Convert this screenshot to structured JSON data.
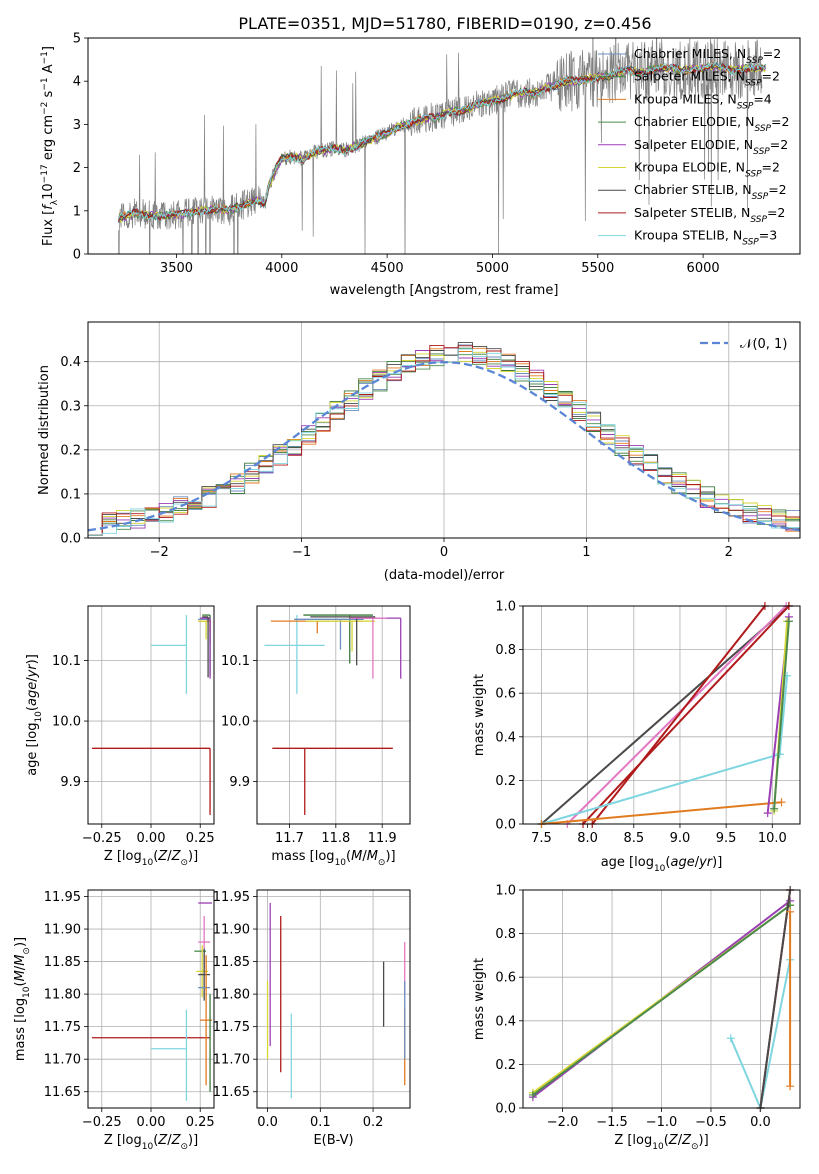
{
  "colors": {
    "Chabrier MILES": "#6c8ebf",
    "Salpeter MILES": "#3b7a3b",
    "Kroupa MILES": "#e07b20",
    "Chabrier ELODIE": "#4c8a4c",
    "Salpeter ELODIE": "#9b3fb5",
    "Kroupa ELODIE": "#d6d636",
    "Chabrier STELIB": "#4a4a4a",
    "Salpeter STELIB": "#b11a1a",
    "Kroupa STELIB": "#7fd6e0",
    "gaussian": "#5b86d6",
    "pink": "#e377c2",
    "data": "#808080"
  },
  "legend_top": [
    {
      "name": "Chabrier MILES",
      "n": "2"
    },
    {
      "name": "Salpeter MILES",
      "n": "2"
    },
    {
      "name": "Kroupa MILES",
      "n": "4"
    },
    {
      "name": "Chabrier ELODIE",
      "n": "2"
    },
    {
      "name": "Salpeter ELODIE",
      "n": "2"
    },
    {
      "name": "Kroupa ELODIE",
      "n": "2"
    },
    {
      "name": "Chabrier STELIB",
      "n": "2"
    },
    {
      "name": "Salpeter STELIB",
      "n": "2"
    },
    {
      "name": "Kroupa STELIB",
      "n": "3"
    }
  ],
  "legend_label_prefix": "N",
  "legend_label_sub": "SSP",
  "chart_data": [
    {
      "id": "spectrum",
      "type": "line",
      "title": "PLATE=0351, MJD=51780, FIBERID=0190, z=0.456",
      "xlabel": "wavelength [Angstrom, rest frame]",
      "ylabel": "Flux [f_λ 10^-17 erg cm^-2 s^-1 A^-1]",
      "xlim": [
        3080,
        6460
      ],
      "ylim": [
        0,
        5
      ],
      "xticks": [
        "3500",
        "4000",
        "4500",
        "5000",
        "5500",
        "6000"
      ],
      "yticks": [
        "0",
        "1",
        "2",
        "3",
        "4",
        "5"
      ],
      "continuum": [
        [
          3225,
          0.83
        ],
        [
          3270,
          0.9
        ],
        [
          3300,
          0.95
        ],
        [
          3350,
          0.92
        ],
        [
          3400,
          0.9
        ],
        [
          3450,
          0.88
        ],
        [
          3500,
          0.9
        ],
        [
          3550,
          0.95
        ],
        [
          3600,
          1.0
        ],
        [
          3650,
          1.02
        ],
        [
          3700,
          1.05
        ],
        [
          3750,
          1.0
        ],
        [
          3800,
          1.1
        ],
        [
          3850,
          1.2
        ],
        [
          3880,
          1.25
        ],
        [
          3920,
          1.15
        ],
        [
          3940,
          1.6
        ],
        [
          3980,
          2.05
        ],
        [
          4000,
          2.2
        ],
        [
          4050,
          2.25
        ],
        [
          4100,
          2.2
        ],
        [
          4150,
          2.35
        ],
        [
          4200,
          2.4
        ],
        [
          4250,
          2.45
        ],
        [
          4300,
          2.4
        ],
        [
          4350,
          2.5
        ],
        [
          4400,
          2.6
        ],
        [
          4450,
          2.7
        ],
        [
          4500,
          2.8
        ],
        [
          4550,
          2.95
        ],
        [
          4600,
          3.0
        ],
        [
          4650,
          3.1
        ],
        [
          4700,
          3.15
        ],
        [
          4750,
          3.2
        ],
        [
          4800,
          3.3
        ],
        [
          4860,
          3.3
        ],
        [
          4900,
          3.4
        ],
        [
          4950,
          3.5
        ],
        [
          5000,
          3.55
        ],
        [
          5050,
          3.6
        ],
        [
          5100,
          3.7
        ],
        [
          5150,
          3.75
        ],
        [
          5200,
          3.7
        ],
        [
          5250,
          3.85
        ],
        [
          5300,
          3.9
        ],
        [
          5350,
          4.0
        ],
        [
          5400,
          4.0
        ],
        [
          5450,
          4.05
        ],
        [
          5500,
          4.1
        ],
        [
          5550,
          4.1
        ],
        [
          5600,
          4.2
        ],
        [
          5650,
          4.25
        ],
        [
          5700,
          4.2
        ],
        [
          5750,
          4.25
        ],
        [
          5800,
          4.3
        ],
        [
          5850,
          4.3
        ],
        [
          5900,
          4.25
        ],
        [
          5950,
          4.3
        ],
        [
          6000,
          4.3
        ],
        [
          6050,
          4.35
        ],
        [
          6100,
          4.3
        ],
        [
          6150,
          4.25
        ],
        [
          6200,
          4.3
        ]
      ],
      "data_range": [
        3225,
        6280
      ]
    },
    {
      "id": "residuals",
      "type": "step",
      "xlabel": "(data-model)/error",
      "ylabel": "Normed distribution",
      "xlim": [
        -2.5,
        2.5
      ],
      "ylim": [
        0,
        0.49
      ],
      "xticks": [
        "−2",
        "−1",
        "0",
        "1",
        "2"
      ],
      "yticks": [
        "0.0",
        "0.1",
        "0.2",
        "0.3",
        "0.4"
      ],
      "gaussian_label": "𝒩(0, 1)",
      "bin_width": 0.1
    },
    {
      "id": "age-vs-Z",
      "type": "errorbar",
      "xlabel": "Z [log10(Z/Z⊙)]",
      "ylabel": "age [log10(age/yr)]",
      "xlim": [
        -0.32,
        0.32
      ],
      "ylim": [
        9.83,
        10.19
      ],
      "xticks": [
        "−0.25",
        "0.00",
        "0.25"
      ],
      "yticks": [
        "9.9",
        "10.0",
        "10.1"
      ],
      "points": [
        {
          "s": "Salpeter STELIB",
          "x": 0.3,
          "y": 9.955,
          "xe": [
            0.6,
            0.0
          ],
          "ye": [
            0.11,
            0.0
          ]
        },
        {
          "s": "Kroupa STELIB",
          "x": 0.18,
          "y": 10.125,
          "xe": [
            0.18,
            0.0
          ],
          "ye": [
            0.08,
            0.05
          ]
        },
        {
          "s": "Chabrier MILES",
          "x": 0.3,
          "y": 10.168,
          "xe": [
            0.06,
            0.0
          ],
          "ye": [
            0.04,
            0.0
          ]
        },
        {
          "s": "Salpeter MILES",
          "x": 0.3,
          "y": 10.175,
          "xe": [
            0.04,
            0.0
          ],
          "ye": [
            0.1,
            0.0
          ]
        },
        {
          "s": "Kroupa MILES",
          "x": 0.3,
          "y": 10.165,
          "xe": [
            0.06,
            0.0
          ],
          "ye": [
            0.02,
            0.0
          ]
        },
        {
          "s": "Salpeter ELODIE",
          "x": 0.3,
          "y": 10.17,
          "xe": [
            0.05,
            0.0
          ],
          "ye": [
            0.1,
            0.0
          ]
        },
        {
          "s": "Kroupa ELODIE",
          "x": 0.28,
          "y": 10.165,
          "xe": [
            0.04,
            0.0
          ],
          "ye": [
            0.03,
            0.0
          ]
        },
        {
          "s": "Chabrier STELIB",
          "x": 0.29,
          "y": 10.172,
          "xe": [
            0.03,
            0.0
          ],
          "ye": [
            0.1,
            0.0
          ]
        }
      ]
    },
    {
      "id": "age-vs-mass",
      "type": "errorbar",
      "xlabel": "mass [log10(M/M⊙)]",
      "ylabel": "",
      "xlim": [
        11.63,
        11.96
      ],
      "ylim": [
        9.83,
        10.19
      ],
      "xticks": [
        "11.7",
        "11.8",
        "11.9"
      ],
      "yticks": [
        "9.9",
        "10.0",
        "10.1"
      ],
      "points": [
        {
          "s": "Salpeter STELIB",
          "x": 11.733,
          "y": 9.955,
          "xe": [
            0.07,
            0.19
          ],
          "ye": [
            0.11,
            0.0
          ]
        },
        {
          "s": "Kroupa STELIB",
          "x": 11.716,
          "y": 10.125,
          "xe": [
            0.07,
            0.06
          ],
          "ye": [
            0.08,
            0.05
          ]
        },
        {
          "s": "Kroupa MILES",
          "x": 11.76,
          "y": 10.165,
          "xe": [
            0.1,
            0.1
          ],
          "ye": [
            0.02,
            0.0
          ]
        },
        {
          "s": "Salpeter ELODIE",
          "x": 11.94,
          "y": 10.17,
          "xe": [
            0.1,
            0.0
          ],
          "ye": [
            0.1,
            0.0
          ]
        },
        {
          "s": "Salpeter MILES",
          "x": 11.83,
          "y": 10.175,
          "xe": [
            0.1,
            0.05
          ],
          "ye": [
            0.08,
            0.0
          ]
        },
        {
          "s": "Chabrier MILES",
          "x": 11.81,
          "y": 10.168,
          "xe": [
            0.1,
            0.05
          ],
          "ye": [
            0.05,
            0.0
          ]
        },
        {
          "s": "Kroupa ELODIE",
          "x": 11.835,
          "y": 10.165,
          "xe": [
            0.1,
            0.05
          ],
          "ye": [
            0.05,
            0.0
          ]
        },
        {
          "s": "Chabrier STELIB",
          "x": 11.845,
          "y": 10.172,
          "xe": [
            0.1,
            0.04
          ],
          "ye": [
            0.08,
            0.0
          ]
        },
        {
          "s": "pink",
          "x": 11.88,
          "y": 10.17,
          "xe": [
            0.05,
            0.03
          ],
          "ye": [
            0.1,
            0.0
          ]
        }
      ]
    },
    {
      "id": "massweight-vs-age",
      "type": "line",
      "xlabel": "age [log10(age/yr)]",
      "ylabel": "mass weight",
      "xlim": [
        7.3,
        10.3
      ],
      "ylim": [
        0,
        1
      ],
      "xticks": [
        "7.5",
        "8.0",
        "8.5",
        "9.0",
        "9.5",
        "10.0"
      ],
      "yticks": [
        "0.0",
        "0.2",
        "0.4",
        "0.6",
        "0.8",
        "1.0"
      ],
      "series": [
        {
          "s": "Chabrier STELIB",
          "x": [
            7.5,
            10.18
          ],
          "y": [
            0.0,
            1.0
          ]
        },
        {
          "s": "pink",
          "x": [
            7.78,
            10.15
          ],
          "y": [
            0.0,
            1.0
          ]
        },
        {
          "s": "Salpeter STELIB",
          "x": [
            8.05,
            9.92
          ],
          "y": [
            0.0,
            1.0
          ]
        },
        {
          "s": "Salpeter STELIB",
          "x": [
            7.95,
            10.18
          ],
          "y": [
            0.0,
            1.0
          ]
        },
        {
          "s": "Kroupa STELIB",
          "x": [
            7.5,
            10.08
          ],
          "y": [
            0.0,
            0.32
          ]
        },
        {
          "s": "Kroupa MILES",
          "x": [
            7.5,
            10.1
          ],
          "y": [
            0.0,
            0.1
          ]
        },
        {
          "s": "Salpeter ELODIE",
          "x": [
            9.95,
            10.18
          ],
          "y": [
            0.05,
            0.95
          ]
        },
        {
          "s": "Kroupa ELODIE",
          "x": [
            10.02,
            10.16
          ],
          "y": [
            0.06,
            0.93
          ]
        },
        {
          "s": "Kroupa STELIB",
          "x": [
            10.08,
            10.16
          ],
          "y": [
            0.32,
            0.68
          ]
        },
        {
          "s": "Chabrier ELODIE",
          "x": [
            10.02,
            10.18
          ],
          "y": [
            0.07,
            0.93
          ]
        }
      ]
    },
    {
      "id": "mass-vs-Z",
      "type": "errorbar",
      "xlabel": "Z [log10(Z/Z⊙)]",
      "ylabel": "mass [log10(M/M⊙)]",
      "xlim": [
        -0.32,
        0.32
      ],
      "ylim": [
        11.625,
        11.96
      ],
      "xticks": [
        "−0.25",
        "0.00",
        "0.25"
      ],
      "yticks": [
        "11.65",
        "11.70",
        "11.75",
        "11.80",
        "11.85",
        "11.90",
        "11.95"
      ],
      "points": [
        {
          "s": "Salpeter STELIB",
          "x": 0.3,
          "y": 11.733,
          "xe": [
            0.6,
            0.0
          ],
          "ye": [
            0.0,
            0.0
          ]
        },
        {
          "s": "Kroupa STELIB",
          "x": 0.18,
          "y": 11.716,
          "xe": [
            0.18,
            0.0
          ],
          "ye": [
            0.08,
            0.06
          ]
        },
        {
          "s": "Salpeter ELODIE",
          "x": 0.28,
          "y": 11.94,
          "xe": [
            0.04,
            0.03
          ],
          "ye": [
            0.0,
            0.0
          ]
        },
        {
          "s": "pink",
          "x": 0.27,
          "y": 11.88,
          "xe": [
            0.03,
            0.03
          ],
          "ye": [
            0.04,
            0.04
          ]
        },
        {
          "s": "Chabrier ELODIE",
          "x": 0.25,
          "y": 11.866,
          "xe": [
            0.03,
            0.03
          ],
          "ye": [
            0.0,
            0.0
          ]
        },
        {
          "s": "Kroupa ELODIE",
          "x": 0.26,
          "y": 11.835,
          "xe": [
            0.03,
            0.03
          ],
          "ye": [
            0.04,
            0.04
          ]
        },
        {
          "s": "Chabrier STELIB",
          "x": 0.27,
          "y": 11.83,
          "xe": [
            0.03,
            0.03
          ],
          "ye": [
            0.04,
            0.04
          ]
        },
        {
          "s": "Chabrier MILES",
          "x": 0.27,
          "y": 11.81,
          "xe": [
            0.03,
            0.03
          ],
          "ye": [
            0.0,
            0.0
          ]
        },
        {
          "s": "Kroupa MILES",
          "x": 0.28,
          "y": 11.76,
          "xe": [
            0.03,
            0.03
          ],
          "ye": [
            0.1,
            0.1
          ]
        },
        {
          "s": "Salpeter MILES",
          "x": 0.3,
          "y": 11.8,
          "xe": [
            0.0,
            0.0
          ],
          "ye": [
            0.15,
            0.0
          ]
        }
      ]
    },
    {
      "id": "mass-vs-EBV",
      "type": "errorbar",
      "xlabel": "E(B-V)",
      "ylabel": "",
      "xlim": [
        -0.02,
        0.27
      ],
      "ylim": [
        11.625,
        11.96
      ],
      "xticks": [
        "0.0",
        "0.1",
        "0.2"
      ],
      "yticks": [
        "11.65",
        "11.70",
        "11.75",
        "11.80",
        "11.85",
        "11.90",
        "11.95"
      ],
      "points": [
        {
          "s": "Salpeter ELODIE",
          "x": 0.005,
          "y": 11.84,
          "xe": [
            0.0,
            0.0
          ],
          "ye": [
            0.12,
            0.1
          ]
        },
        {
          "s": "Kroupa ELODIE",
          "x": 0.0,
          "y": 11.76,
          "xe": [
            0.0,
            0.0
          ],
          "ye": [
            0.06,
            0.06
          ]
        },
        {
          "s": "Salpeter STELIB",
          "x": 0.025,
          "y": 11.8,
          "xe": [
            0.0,
            0.0
          ],
          "ye": [
            0.12,
            0.12
          ]
        },
        {
          "s": "Kroupa STELIB",
          "x": 0.045,
          "y": 11.72,
          "xe": [
            0.0,
            0.0
          ],
          "ye": [
            0.08,
            0.05
          ]
        },
        {
          "s": "Chabrier STELIB",
          "x": 0.22,
          "y": 11.8,
          "xe": [
            0.0,
            0.0
          ],
          "ye": [
            0.05,
            0.05
          ]
        },
        {
          "s": "pink",
          "x": 0.26,
          "y": 11.84,
          "xe": [
            0.0,
            0.0
          ],
          "ye": [
            0.04,
            0.04
          ]
        },
        {
          "s": "Kroupa MILES",
          "x": 0.26,
          "y": 11.72,
          "xe": [
            0.0,
            0.0
          ],
          "ye": [
            0.06,
            0.06
          ]
        },
        {
          "s": "Chabrier MILES",
          "x": 0.26,
          "y": 11.76,
          "xe": [
            0.0,
            0.0
          ],
          "ye": [
            0.06,
            0.06
          ]
        }
      ]
    },
    {
      "id": "massweight-vs-Z",
      "type": "line",
      "xlabel": "Z [log10(Z/Z⊙)]",
      "ylabel": "mass weight",
      "xlim": [
        -2.4,
        0.4
      ],
      "ylim": [
        0,
        1
      ],
      "xticks": [
        "−2.0",
        "−1.5",
        "−1.0",
        "−0.5",
        "0.0"
      ],
      "yticks": [
        "0.0",
        "0.2",
        "0.4",
        "0.6",
        "0.8",
        "1.0"
      ],
      "series": [
        {
          "s": "Salpeter ELODIE",
          "x": [
            -2.3,
            0.3
          ],
          "y": [
            0.05,
            0.95
          ]
        },
        {
          "s": "Kroupa ELODIE",
          "x": [
            -2.3,
            0.3
          ],
          "y": [
            0.07,
            0.93
          ]
        },
        {
          "s": "Chabrier ELODIE",
          "x": [
            -2.3,
            0.3
          ],
          "y": [
            0.06,
            0.93
          ]
        },
        {
          "s": "Kroupa STELIB",
          "x": [
            -0.3,
            0.0,
            0.3
          ],
          "y": [
            0.32,
            0.0,
            0.68
          ]
        },
        {
          "s": "Salpeter STELIB",
          "x": [
            0.0,
            0.3
          ],
          "y": [
            0.0,
            1.0
          ]
        },
        {
          "s": "Chabrier STELIB",
          "x": [
            0.0,
            0.3
          ],
          "y": [
            0.0,
            1.0
          ]
        },
        {
          "s": "Kroupa MILES",
          "x": [
            0.3,
            0.3
          ],
          "y": [
            0.1,
            0.9
          ]
        }
      ]
    }
  ]
}
